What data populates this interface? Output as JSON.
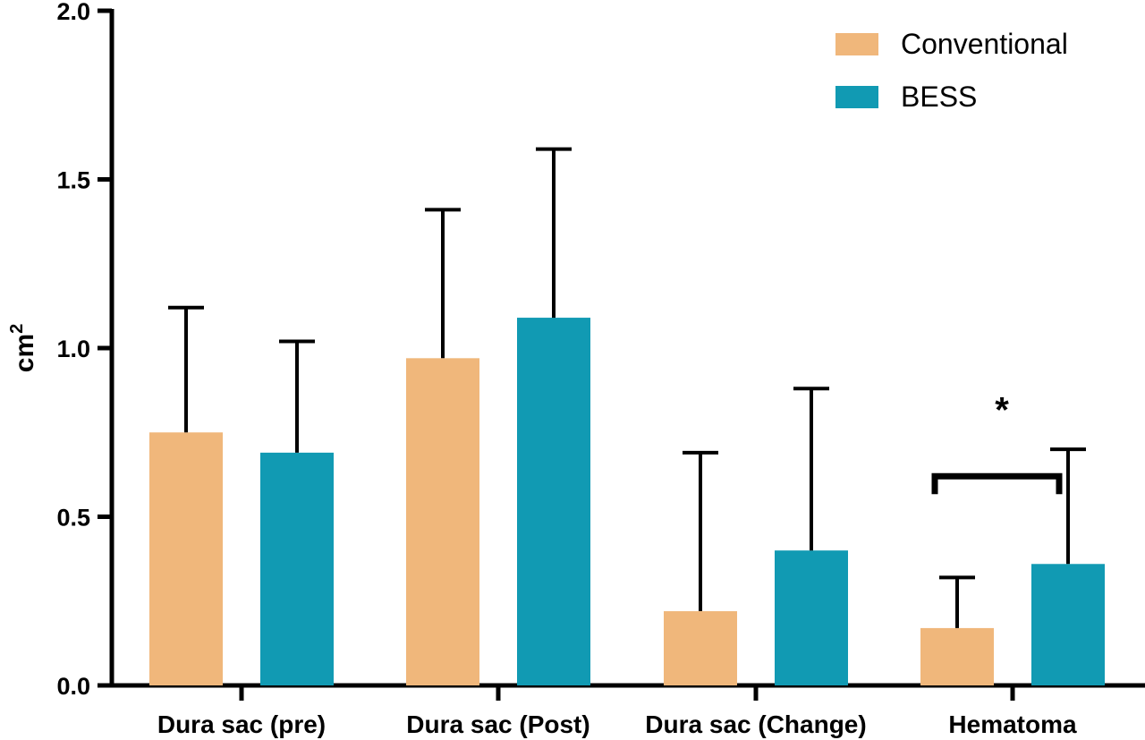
{
  "chart_data": {
    "type": "bar",
    "title": "",
    "xlabel": "",
    "ylabel": {
      "base": "cm",
      "superscript": "2"
    },
    "ylim": [
      0,
      2.0
    ],
    "yticks": [
      0.0,
      0.5,
      1.0,
      1.5,
      2.0
    ],
    "ytick_labels": [
      "0.0",
      "0.5",
      "1.0",
      "1.5",
      "2.0"
    ],
    "categories": [
      "Dura sac (pre)",
      "Dura sac (Post)",
      "Dura sac (Change)",
      "Hematoma"
    ],
    "series": [
      {
        "name": "Conventional",
        "color": "#F0B77B",
        "values": [
          0.75,
          0.97,
          0.22,
          0.17
        ],
        "error_upper": [
          1.12,
          1.41,
          0.69,
          0.32
        ]
      },
      {
        "name": "BESS",
        "color": "#119AB3",
        "values": [
          0.69,
          1.09,
          0.4,
          0.36
        ],
        "error_upper": [
          1.02,
          1.59,
          0.88,
          0.7
        ]
      }
    ],
    "legend": {
      "position": "top-right"
    },
    "grid": false,
    "annotations": [
      {
        "text": "*",
        "category": "Hematoma",
        "type": "significance-bracket",
        "bracket_y": 0.62,
        "label_y": 0.84
      }
    ]
  }
}
